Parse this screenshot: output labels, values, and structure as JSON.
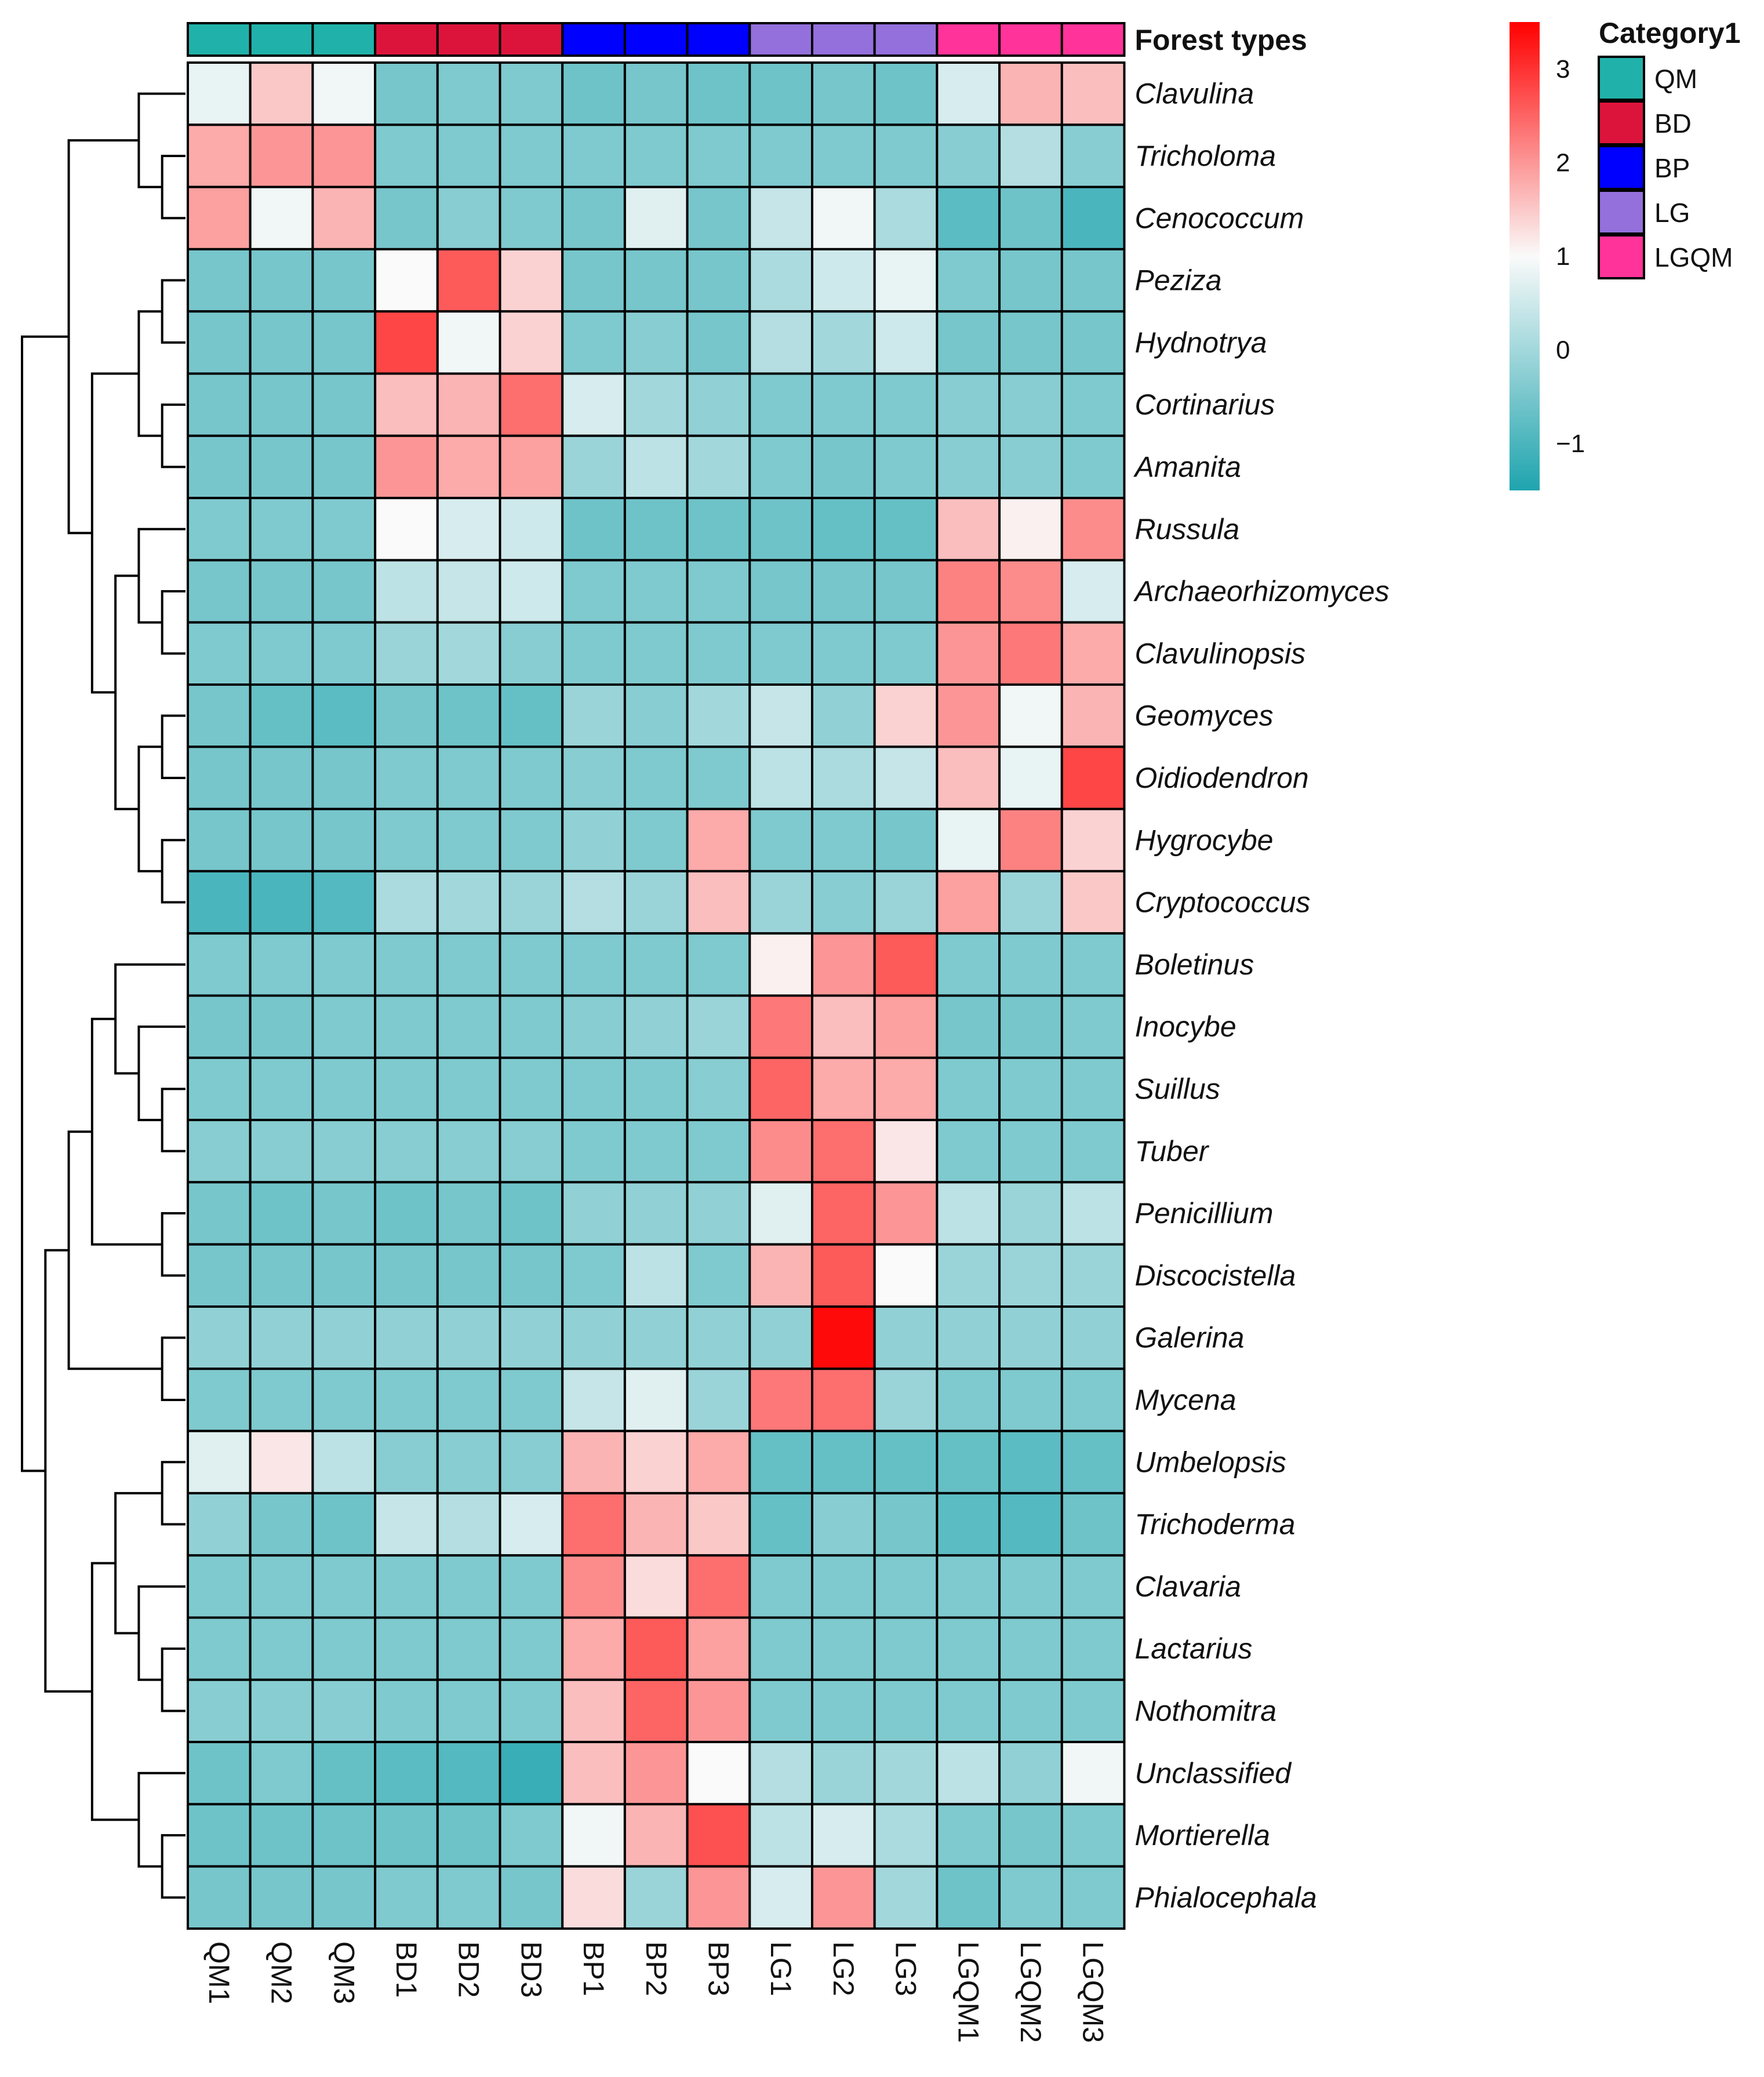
{
  "chart_data": {
    "type": "heatmap",
    "title": "",
    "annotation_label": "Forest types",
    "annotation_legend_title": "Category1",
    "groups": [
      {
        "name": "QM",
        "color": "#20B2AA"
      },
      {
        "name": "BD",
        "color": "#DC143C"
      },
      {
        "name": "BP",
        "color": "#0000FF"
      },
      {
        "name": "LG",
        "color": "#9370DB"
      },
      {
        "name": "LGQM",
        "color": "#FF3399"
      }
    ],
    "columns": [
      "QM1",
      "QM2",
      "QM3",
      "BD1",
      "BD2",
      "BD3",
      "BP1",
      "BP2",
      "BP3",
      "LG1",
      "LG2",
      "LG3",
      "LGQM1",
      "LGQM2",
      "LGQM3"
    ],
    "column_groups": [
      "QM",
      "QM",
      "QM",
      "BD",
      "BD",
      "BD",
      "BP",
      "BP",
      "BP",
      "LG",
      "LG",
      "LG",
      "LGQM",
      "LGQM",
      "LGQM"
    ],
    "rows": [
      "Clavulina",
      "Tricholoma",
      "Cenococcum",
      "Peziza",
      "Hydnotrya",
      "Cortinarius",
      "Amanita",
      "Russula",
      "Archaeorhizomyces",
      "Clavulinopsis",
      "Geomyces",
      "Oidiodendron",
      "Hygrocybe",
      "Cryptococcus",
      "Boletinus",
      "Inocybe",
      "Suillus",
      "Tuber",
      "Penicillium",
      "Discocistella",
      "Galerina",
      "Mycena",
      "Umbelopsis",
      "Trichoderma",
      "Clavaria",
      "Lactarius",
      "Nothomitra",
      "Unclassified",
      "Mortierella",
      "Phialocephala"
    ],
    "values": [
      [
        0.8,
        1.5,
        0.9,
        -0.5,
        -0.4,
        -0.4,
        -0.6,
        -0.5,
        -0.6,
        -0.6,
        -0.5,
        -0.6,
        0.6,
        1.7,
        1.6
      ],
      [
        1.8,
        2.0,
        2.0,
        -0.4,
        -0.4,
        -0.4,
        -0.4,
        -0.4,
        -0.4,
        -0.4,
        -0.4,
        -0.4,
        -0.3,
        0.2,
        -0.3
      ],
      [
        1.9,
        0.9,
        1.7,
        -0.5,
        -0.3,
        -0.4,
        -0.5,
        0.7,
        -0.5,
        0.4,
        0.9,
        0.1,
        -0.8,
        -0.6,
        -1.0
      ],
      [
        -0.5,
        -0.5,
        -0.5,
        1.0,
        2.6,
        1.4,
        -0.5,
        -0.5,
        -0.5,
        0.1,
        0.5,
        0.8,
        -0.4,
        -0.5,
        -0.5
      ],
      [
        -0.5,
        -0.5,
        -0.5,
        2.8,
        0.9,
        1.4,
        -0.4,
        -0.3,
        -0.5,
        0.2,
        0.0,
        0.5,
        -0.5,
        -0.5,
        -0.5
      ],
      [
        -0.5,
        -0.5,
        -0.5,
        1.6,
        1.7,
        2.4,
        0.6,
        0.0,
        -0.2,
        -0.4,
        -0.4,
        -0.4,
        -0.3,
        -0.3,
        -0.4
      ],
      [
        -0.5,
        -0.5,
        -0.5,
        2.0,
        1.8,
        1.9,
        -0.1,
        0.3,
        0.0,
        -0.4,
        -0.5,
        -0.4,
        -0.3,
        -0.3,
        -0.4
      ],
      [
        -0.4,
        -0.4,
        -0.4,
        1.0,
        0.6,
        0.5,
        -0.6,
        -0.6,
        -0.6,
        -0.6,
        -0.7,
        -0.7,
        1.6,
        1.1,
        2.1
      ],
      [
        -0.5,
        -0.5,
        -0.5,
        0.3,
        0.4,
        0.5,
        -0.4,
        -0.4,
        -0.4,
        -0.5,
        -0.5,
        -0.5,
        2.2,
        2.1,
        0.6
      ],
      [
        -0.4,
        -0.4,
        -0.4,
        -0.1,
        0.0,
        -0.3,
        -0.4,
        -0.4,
        -0.4,
        -0.4,
        -0.4,
        -0.4,
        2.0,
        2.3,
        1.8
      ],
      [
        -0.5,
        -0.7,
        -0.8,
        -0.5,
        -0.6,
        -0.7,
        -0.1,
        -0.3,
        0.0,
        0.4,
        -0.2,
        1.4,
        2.0,
        0.9,
        1.7
      ],
      [
        -0.5,
        -0.5,
        -0.5,
        -0.4,
        -0.4,
        -0.4,
        -0.3,
        -0.4,
        -0.4,
        0.3,
        0.1,
        0.4,
        1.6,
        0.8,
        2.8
      ],
      [
        -0.5,
        -0.5,
        -0.5,
        -0.4,
        -0.4,
        -0.4,
        -0.2,
        -0.4,
        1.8,
        -0.4,
        -0.4,
        -0.5,
        0.8,
        2.2,
        1.4
      ],
      [
        -1.0,
        -1.0,
        -0.9,
        0.1,
        0.0,
        -0.1,
        0.2,
        -0.1,
        1.6,
        -0.1,
        -0.3,
        -0.1,
        1.9,
        -0.1,
        1.5
      ],
      [
        -0.4,
        -0.4,
        -0.4,
        -0.4,
        -0.4,
        -0.4,
        -0.4,
        -0.4,
        -0.4,
        1.1,
        2.0,
        2.6,
        -0.4,
        -0.4,
        -0.4
      ],
      [
        -0.5,
        -0.5,
        -0.4,
        -0.4,
        -0.4,
        -0.4,
        -0.3,
        -0.2,
        -0.1,
        2.3,
        1.6,
        1.9,
        -0.5,
        -0.5,
        -0.4
      ],
      [
        -0.4,
        -0.4,
        -0.4,
        -0.4,
        -0.4,
        -0.4,
        -0.4,
        -0.4,
        -0.3,
        2.5,
        1.8,
        1.8,
        -0.4,
        -0.4,
        -0.4
      ],
      [
        -0.3,
        -0.3,
        -0.3,
        -0.3,
        -0.3,
        -0.3,
        -0.4,
        -0.4,
        -0.4,
        2.1,
        2.4,
        1.2,
        -0.4,
        -0.4,
        -0.4
      ],
      [
        -0.5,
        -0.6,
        -0.5,
        -0.6,
        -0.5,
        -0.6,
        -0.2,
        -0.2,
        -0.2,
        0.7,
        2.5,
        2.0,
        0.3,
        -0.1,
        0.3
      ],
      [
        -0.5,
        -0.5,
        -0.5,
        -0.5,
        -0.5,
        -0.5,
        -0.4,
        0.3,
        -0.4,
        1.7,
        2.6,
        1.0,
        -0.1,
        -0.1,
        -0.1
      ],
      [
        -0.2,
        -0.2,
        -0.2,
        -0.2,
        -0.2,
        -0.2,
        -0.2,
        -0.2,
        -0.2,
        -0.2,
        3.4,
        -0.2,
        -0.2,
        -0.2,
        -0.2
      ],
      [
        -0.4,
        -0.4,
        -0.4,
        -0.4,
        -0.4,
        -0.4,
        0.4,
        0.7,
        -0.1,
        2.3,
        2.4,
        -0.1,
        -0.4,
        -0.4,
        -0.4
      ],
      [
        0.7,
        1.2,
        0.3,
        -0.3,
        -0.3,
        -0.3,
        1.7,
        1.4,
        1.8,
        -0.7,
        -0.7,
        -0.7,
        -0.7,
        -0.8,
        -0.7
      ],
      [
        -0.2,
        -0.5,
        -0.6,
        0.4,
        0.2,
        0.6,
        2.4,
        1.7,
        1.5,
        -0.7,
        -0.3,
        -0.5,
        -0.8,
        -0.9,
        -0.6
      ],
      [
        -0.4,
        -0.4,
        -0.4,
        -0.4,
        -0.4,
        -0.4,
        2.1,
        1.3,
        2.4,
        -0.4,
        -0.4,
        -0.4,
        -0.4,
        -0.4,
        -0.4
      ],
      [
        -0.4,
        -0.4,
        -0.4,
        -0.4,
        -0.4,
        -0.4,
        1.8,
        2.6,
        1.9,
        -0.4,
        -0.4,
        -0.4,
        -0.4,
        -0.4,
        -0.4
      ],
      [
        -0.3,
        -0.3,
        -0.3,
        -0.4,
        -0.4,
        -0.4,
        1.6,
        2.5,
        2.0,
        -0.4,
        -0.4,
        -0.4,
        -0.4,
        -0.4,
        -0.4
      ],
      [
        -0.6,
        -0.4,
        -0.7,
        -0.8,
        -0.9,
        -1.2,
        1.6,
        2.0,
        1.0,
        0.2,
        -0.1,
        0.0,
        0.3,
        -0.2,
        0.9
      ],
      [
        -0.6,
        -0.6,
        -0.6,
        -0.6,
        -0.6,
        -0.4,
        0.9,
        1.7,
        2.7,
        0.3,
        0.6,
        0.1,
        -0.4,
        -0.5,
        -0.4
      ],
      [
        -0.5,
        -0.5,
        -0.5,
        -0.4,
        -0.4,
        -0.5,
        1.3,
        -0.1,
        2.0,
        0.6,
        2.0,
        0.0,
        -0.6,
        -0.4,
        -0.4
      ]
    ],
    "color_scale": {
      "min": -1.5,
      "mid": 1.0,
      "max": 3.5,
      "low_color": "#1FA4AE",
      "mid_color": "#FAFAFA",
      "high_color": "#FF0000",
      "ticks": [
        3,
        2,
        1,
        0,
        -1
      ],
      "tick_labels": [
        "3",
        "2",
        "1",
        "0",
        "−1"
      ]
    },
    "row_dendrogram": true
  }
}
